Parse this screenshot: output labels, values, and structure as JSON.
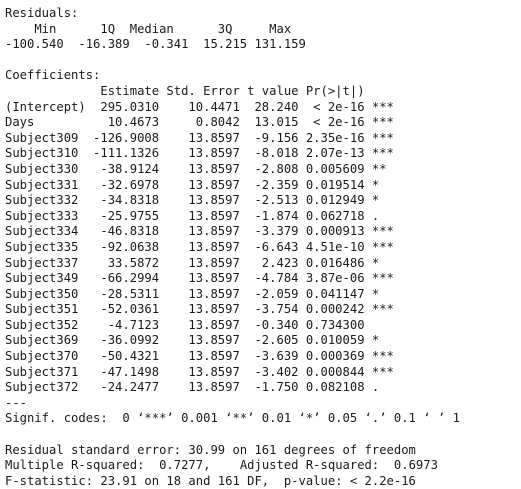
{
  "residuals": {
    "header": "Residuals:",
    "labels_line": "    Min      1Q  Median      3Q     Max ",
    "values_line": "-100.540  -16.389  -0.341  15.215 131.159 "
  },
  "coefficients": {
    "header": "Coefficients:",
    "column_header": "             Estimate Std. Error t value Pr(>|t|)    ",
    "rows": [
      "(Intercept)  295.0310    10.4471  28.240  < 2e-16 ***",
      "Days          10.4673     0.8042  13.015  < 2e-16 ***",
      "Subject309  -126.9008    13.8597  -9.156 2.35e-16 ***",
      "Subject310  -111.1326    13.8597  -8.018 2.07e-13 ***",
      "Subject330   -38.9124    13.8597  -2.808 0.005609 ** ",
      "Subject331   -32.6978    13.8597  -2.359 0.019514 *  ",
      "Subject332   -34.8318    13.8597  -2.513 0.012949 *  ",
      "Subject333   -25.9755    13.8597  -1.874 0.062718 .  ",
      "Subject334   -46.8318    13.8597  -3.379 0.000913 ***",
      "Subject335   -92.0638    13.8597  -6.643 4.51e-10 ***",
      "Subject337    33.5872    13.8597   2.423 0.016486 *  ",
      "Subject349   -66.2994    13.8597  -4.784 3.87e-06 ***",
      "Subject350   -28.5311    13.8597  -2.059 0.041147 *  ",
      "Subject351   -52.0361    13.8597  -3.754 0.000242 ***",
      "Subject352    -4.7123    13.8597  -0.340 0.734300    ",
      "Subject369   -36.0992    13.8597  -2.605 0.010059 *  ",
      "Subject370   -50.4321    13.8597  -3.639 0.000369 ***",
      "Subject371   -47.1498    13.8597  -3.402 0.000844 ***",
      "Subject372   -24.2477    13.8597  -1.750 0.082108 .  "
    ],
    "separator": "---",
    "signif_codes": "Signif. codes:  0 ‘***’ 0.001 ‘**’ 0.01 ‘*’ 0.05 ‘.’ 0.1 ‘ ’ 1"
  },
  "summary": {
    "residual_se": "Residual standard error: 30.99 on 161 degrees of freedom",
    "r_squared": "Multiple R-squared:  0.7277,\tAdjusted R-squared:  0.6973 ",
    "f_statistic": "F-statistic: 23.91 on 18 and 161 DF,  p-value: < 2.2e-16"
  }
}
